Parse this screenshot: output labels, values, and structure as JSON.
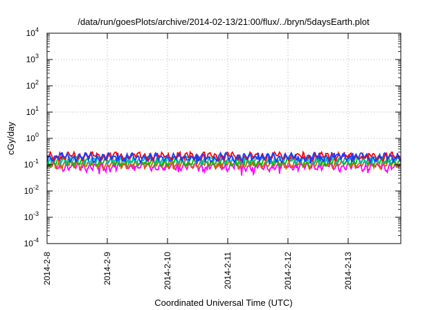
{
  "chart_data": {
    "type": "line",
    "title": "/data/run/goesPlots/archive/2014-02-13/21:00/flux/../bryn/5daysEarth.plot",
    "xlabel": "Coordinated Universal Time (UTC)",
    "ylabel": "cGy/day",
    "y_scale": "log",
    "ylim": [
      0.0001,
      10000
    ],
    "xlim": [
      "2014-02-08 00:00",
      "2014-02-13 21:00"
    ],
    "x_ticks": [
      "2014-2-8",
      "2014-2-9",
      "2014-2-10",
      "2014-2-11",
      "2014-2-12",
      "2014-2-13"
    ],
    "y_ticks": [
      {
        "value": 0.0001,
        "base": "10",
        "exp": "-4"
      },
      {
        "value": 0.001,
        "base": "10",
        "exp": "-3"
      },
      {
        "value": 0.01,
        "base": "10",
        "exp": "-2"
      },
      {
        "value": 0.1,
        "base": "10",
        "exp": "-1"
      },
      {
        "value": 1,
        "base": "10",
        "exp": "0"
      },
      {
        "value": 10,
        "base": "10",
        "exp": "1"
      },
      {
        "value": 100,
        "base": "10",
        "exp": "2"
      },
      {
        "value": 1000,
        "base": "10",
        "exp": "3"
      },
      {
        "value": 10000,
        "base": "10",
        "exp": "4"
      }
    ],
    "grid": true,
    "series": [
      {
        "color": "#ff00ff",
        "level": 0.085,
        "min": 0.035,
        "max": 0.11
      },
      {
        "color": "#cc6600",
        "level": 0.105,
        "min": 0.07,
        "max": 0.13
      },
      {
        "color": "#00bb00",
        "level": 0.13,
        "min": 0.09,
        "max": 0.17
      },
      {
        "color": "#00bbbb",
        "level": 0.16,
        "min": 0.1,
        "max": 0.2
      },
      {
        "color": "#ff0000",
        "level": 0.21,
        "min": 0.14,
        "max": 0.3
      },
      {
        "color": "#1a3cff",
        "level": 0.19,
        "min": 0.1,
        "max": 0.28
      }
    ]
  }
}
